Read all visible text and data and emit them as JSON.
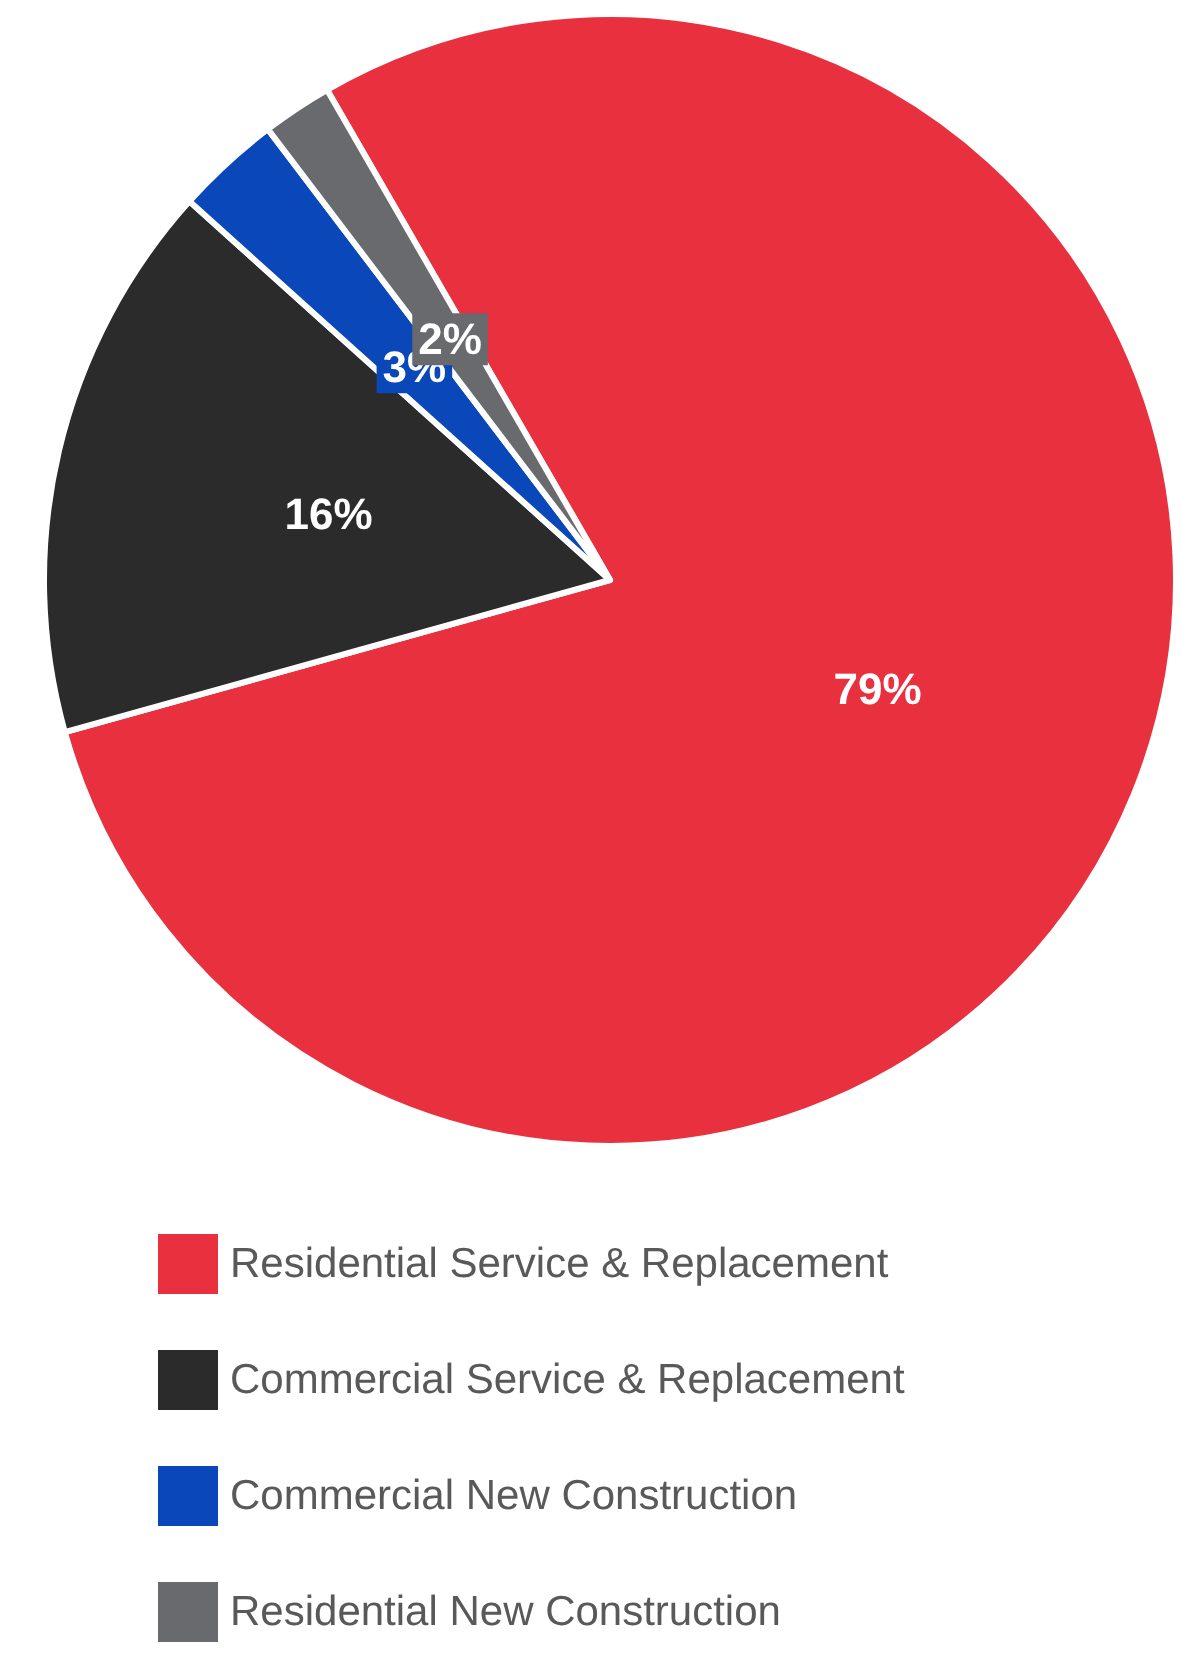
{
  "chart_data": {
    "type": "pie",
    "categories": [
      "Residential Service & Replacement",
      "Commercial Service & Replacement",
      "Commercial New Construction",
      "Residential New Construction"
    ],
    "values": [
      79,
      16,
      3,
      2
    ],
    "colors": [
      "#e8303f",
      "#2b2b2b",
      "#0a47b8",
      "#686a6e"
    ],
    "value_labels": [
      "79%",
      "16%",
      "3%",
      "2%"
    ],
    "legend": "bottom"
  }
}
